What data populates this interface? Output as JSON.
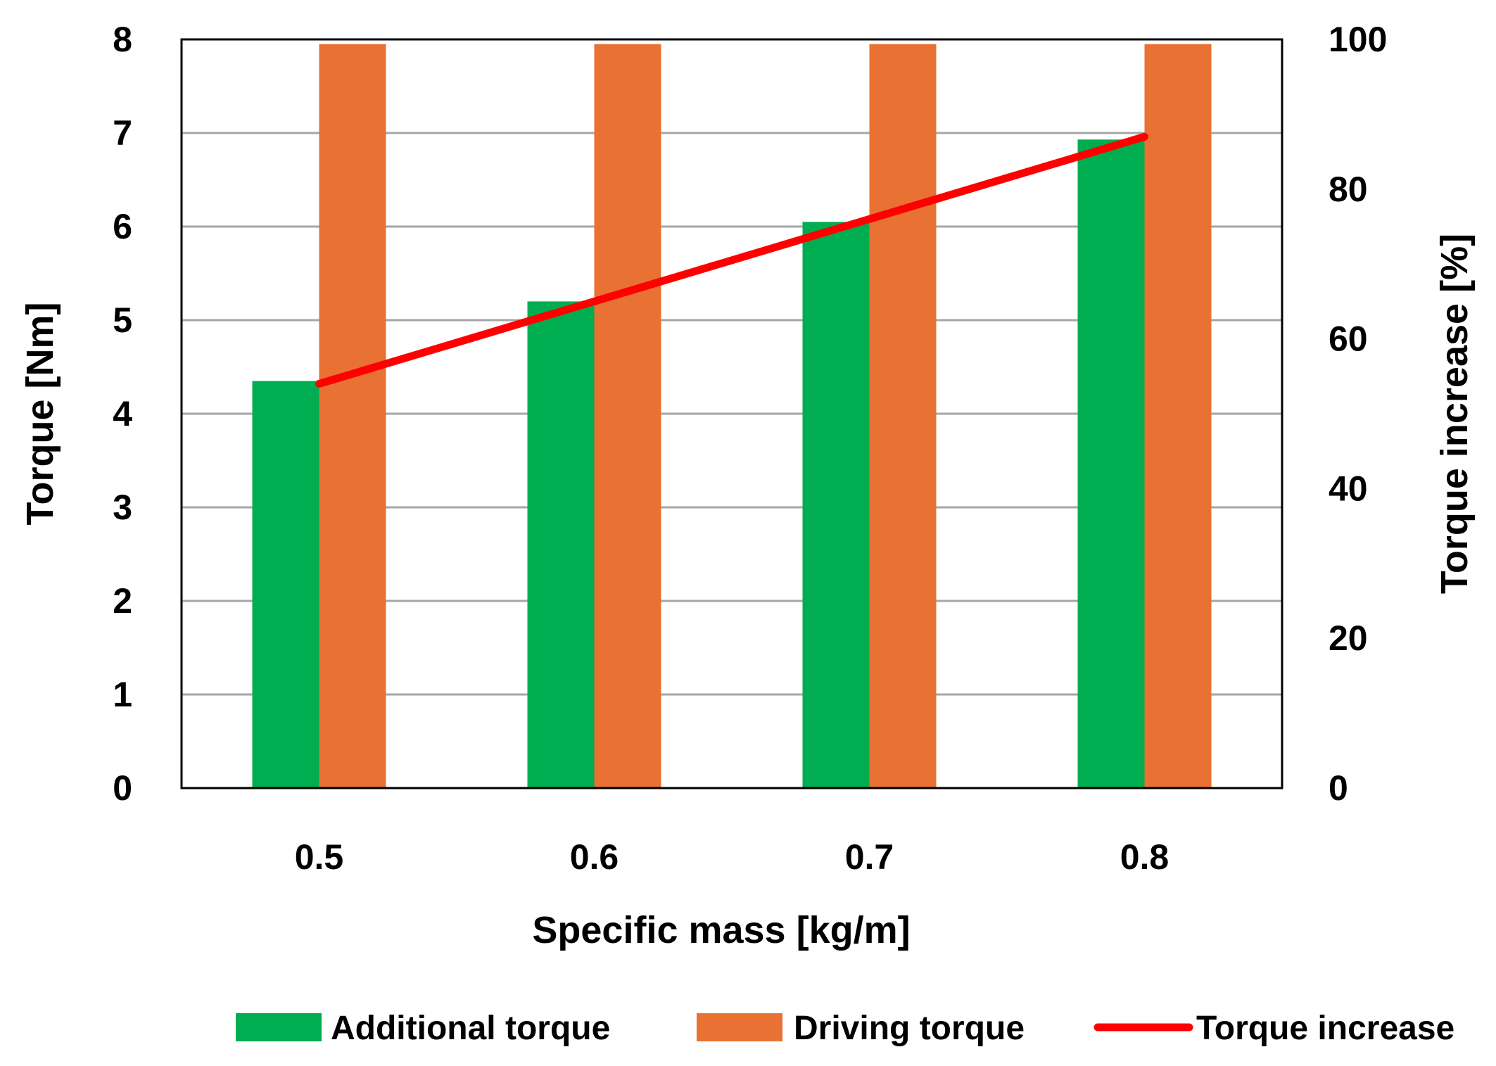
{
  "chart_data": {
    "type": "bar",
    "categories": [
      "0.5",
      "0.6",
      "0.7",
      "0.8"
    ],
    "series": [
      {
        "name": "Additional torque",
        "kind": "bar",
        "axis": "left",
        "color": "#00AD50",
        "values": [
          4.35,
          5.2,
          6.05,
          6.93
        ]
      },
      {
        "name": "Driving torque",
        "kind": "bar",
        "axis": "left",
        "color": "#E97133",
        "values": [
          7.95,
          7.95,
          7.95,
          7.95
        ]
      },
      {
        "name": "Torque increase",
        "kind": "line",
        "axis": "right",
        "color": "#FF0000",
        "values": [
          54,
          65,
          76,
          87
        ]
      }
    ],
    "xlabel": "Specific mass  [kg/m]",
    "ylabel": "Torque  [Nm]",
    "y2label": "Torque increase [%]",
    "ylim": [
      0,
      8
    ],
    "y2lim": [
      0,
      100
    ],
    "yticks": [
      "0",
      "1",
      "2",
      "3",
      "4",
      "5",
      "6",
      "7",
      "8"
    ],
    "y2ticks": [
      "0",
      "20",
      "40",
      "60",
      "80",
      "100"
    ],
    "grid": true,
    "legend_position": "bottom"
  }
}
